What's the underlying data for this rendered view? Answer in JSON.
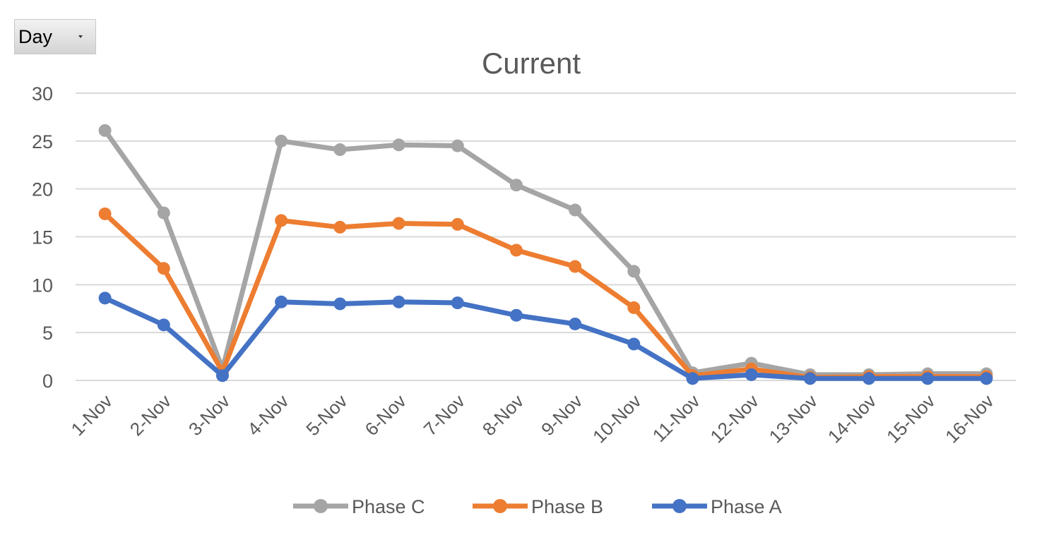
{
  "filter": {
    "label": "Day",
    "icon": "chevron-down-icon"
  },
  "chart_data": {
    "type": "line",
    "title": "Current",
    "xlabel": "",
    "ylabel": "",
    "ylim": [
      0,
      30
    ],
    "yticks": [
      0,
      5,
      10,
      15,
      20,
      25,
      30
    ],
    "grid": true,
    "legend_position": "bottom",
    "categories": [
      "1-Nov",
      "2-Nov",
      "3-Nov",
      "4-Nov",
      "5-Nov",
      "6-Nov",
      "7-Nov",
      "8-Nov",
      "9-Nov",
      "10-Nov",
      "11-Nov",
      "12-Nov",
      "13-Nov",
      "14-Nov",
      "15-Nov",
      "16-Nov"
    ],
    "series": [
      {
        "name": "Phase C",
        "color": "#a5a5a5",
        "values": [
          26.1,
          17.5,
          1.2,
          25.0,
          24.1,
          24.6,
          24.5,
          20.4,
          17.8,
          11.4,
          0.8,
          1.8,
          0.6,
          0.6,
          0.7,
          0.7
        ]
      },
      {
        "name": "Phase B",
        "color": "#ed7d31",
        "values": [
          17.4,
          11.7,
          0.9,
          16.7,
          16.0,
          16.4,
          16.3,
          13.6,
          11.9,
          7.6,
          0.5,
          1.2,
          0.3,
          0.4,
          0.4,
          0.4
        ]
      },
      {
        "name": "Phase A",
        "color": "#4472c4",
        "values": [
          8.6,
          5.8,
          0.5,
          8.2,
          8.0,
          8.2,
          8.1,
          6.8,
          5.9,
          3.8,
          0.2,
          0.6,
          0.2,
          0.2,
          0.2,
          0.2
        ]
      }
    ]
  }
}
